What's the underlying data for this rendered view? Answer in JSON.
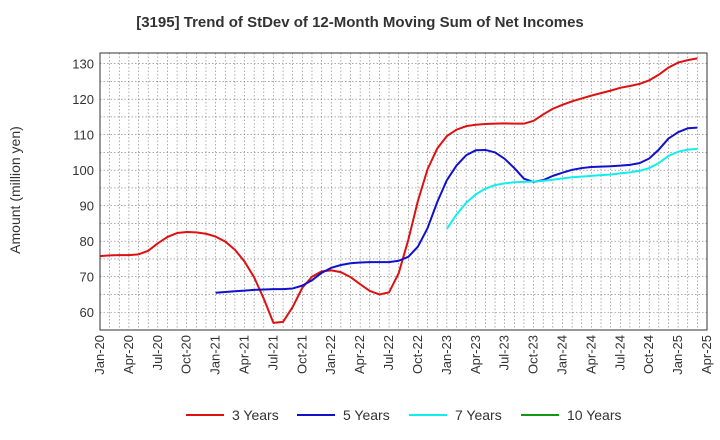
{
  "chart_data": {
    "type": "line",
    "title": "[3195]  Trend of StDev of 12-Month Moving Sum of Net Incomes",
    "ylabel": "Amount (million yen)",
    "xlabel": "",
    "x_range": [
      "2020-01",
      "2025-04"
    ],
    "ylim": [
      55,
      133
    ],
    "y_ticks": [
      60,
      70,
      80,
      90,
      100,
      110,
      120,
      130
    ],
    "x_ticks": [
      "Jan-20",
      "Apr-20",
      "Jul-20",
      "Oct-20",
      "Jan-21",
      "Apr-21",
      "Jul-21",
      "Oct-21",
      "Jan-22",
      "Apr-22",
      "Jul-22",
      "Oct-22",
      "Jan-23",
      "Apr-23",
      "Jul-23",
      "Oct-23",
      "Jan-24",
      "Apr-24",
      "Jul-24",
      "Oct-24",
      "Jan-25",
      "Apr-25"
    ],
    "grid": true,
    "legend_position": "bottom",
    "series": [
      {
        "name": "3 Years",
        "color": "#dd1111",
        "points": [
          [
            "2020-01",
            75.8
          ],
          [
            "2020-02",
            76.0
          ],
          [
            "2020-03",
            76.1
          ],
          [
            "2020-04",
            76.1
          ],
          [
            "2020-05",
            76.3
          ],
          [
            "2020-06",
            77.3
          ],
          [
            "2020-07",
            79.4
          ],
          [
            "2020-08",
            81.2
          ],
          [
            "2020-09",
            82.3
          ],
          [
            "2020-10",
            82.6
          ],
          [
            "2020-11",
            82.5
          ],
          [
            "2020-12",
            82.1
          ],
          [
            "2021-01",
            81.3
          ],
          [
            "2021-02",
            79.9
          ],
          [
            "2021-03",
            77.6
          ],
          [
            "2021-04",
            74.3
          ],
          [
            "2021-05",
            69.8
          ],
          [
            "2021-06",
            63.8
          ],
          [
            "2021-07",
            57.0
          ],
          [
            "2021-08",
            57.3
          ],
          [
            "2021-09",
            61.5
          ],
          [
            "2021-10",
            66.9
          ],
          [
            "2021-11",
            70.0
          ],
          [
            "2021-12",
            71.5
          ],
          [
            "2022-01",
            71.8
          ],
          [
            "2022-02",
            71.3
          ],
          [
            "2022-03",
            69.9
          ],
          [
            "2022-04",
            67.9
          ],
          [
            "2022-05",
            66.0
          ],
          [
            "2022-06",
            65.0
          ],
          [
            "2022-07",
            65.6
          ],
          [
            "2022-08",
            71.0
          ],
          [
            "2022-09",
            80.4
          ],
          [
            "2022-10",
            91.4
          ],
          [
            "2022-11",
            100.3
          ],
          [
            "2022-12",
            106.1
          ],
          [
            "2023-01",
            109.6
          ],
          [
            "2023-02",
            111.4
          ],
          [
            "2023-03",
            112.4
          ],
          [
            "2023-04",
            112.8
          ],
          [
            "2023-05",
            113.0
          ],
          [
            "2023-06",
            113.1
          ],
          [
            "2023-07",
            113.2
          ],
          [
            "2023-08",
            113.1
          ],
          [
            "2023-09",
            113.1
          ],
          [
            "2023-10",
            113.9
          ],
          [
            "2023-11",
            115.7
          ],
          [
            "2023-12",
            117.3
          ],
          [
            "2024-01",
            118.4
          ],
          [
            "2024-02",
            119.4
          ],
          [
            "2024-03",
            120.2
          ],
          [
            "2024-04",
            121.0
          ],
          [
            "2024-05",
            121.7
          ],
          [
            "2024-06",
            122.4
          ],
          [
            "2024-07",
            123.2
          ],
          [
            "2024-08",
            123.7
          ],
          [
            "2024-09",
            124.3
          ],
          [
            "2024-10",
            125.3
          ],
          [
            "2024-11",
            126.9
          ],
          [
            "2024-12",
            128.9
          ],
          [
            "2025-01",
            130.3
          ],
          [
            "2025-02",
            131.0
          ],
          [
            "2025-03",
            131.5
          ]
        ]
      },
      {
        "name": "5 Years",
        "color": "#1111cc",
        "points": [
          [
            "2021-01",
            65.5
          ],
          [
            "2021-02",
            65.7
          ],
          [
            "2021-03",
            65.9
          ],
          [
            "2021-04",
            66.1
          ],
          [
            "2021-05",
            66.3
          ],
          [
            "2021-06",
            66.4
          ],
          [
            "2021-07",
            66.5
          ],
          [
            "2021-08",
            66.5
          ],
          [
            "2021-09",
            66.7
          ],
          [
            "2021-10",
            67.5
          ],
          [
            "2021-11",
            69.0
          ],
          [
            "2021-12",
            71.1
          ],
          [
            "2022-01",
            72.5
          ],
          [
            "2022-02",
            73.3
          ],
          [
            "2022-03",
            73.8
          ],
          [
            "2022-04",
            74.0
          ],
          [
            "2022-05",
            74.1
          ],
          [
            "2022-06",
            74.1
          ],
          [
            "2022-07",
            74.1
          ],
          [
            "2022-08",
            74.5
          ],
          [
            "2022-09",
            75.6
          ],
          [
            "2022-10",
            78.5
          ],
          [
            "2022-11",
            83.7
          ],
          [
            "2022-12",
            91.0
          ],
          [
            "2023-01",
            97.2
          ],
          [
            "2023-02",
            101.3
          ],
          [
            "2023-03",
            104.2
          ],
          [
            "2023-04",
            105.6
          ],
          [
            "2023-05",
            105.7
          ],
          [
            "2023-06",
            105.0
          ],
          [
            "2023-07",
            103.2
          ],
          [
            "2023-08",
            100.6
          ],
          [
            "2023-09",
            97.6
          ],
          [
            "2023-10",
            96.7
          ],
          [
            "2023-11",
            97.2
          ],
          [
            "2023-12",
            98.4
          ],
          [
            "2024-01",
            99.3
          ],
          [
            "2024-02",
            100.1
          ],
          [
            "2024-03",
            100.6
          ],
          [
            "2024-04",
            100.9
          ],
          [
            "2024-05",
            101.0
          ],
          [
            "2024-06",
            101.1
          ],
          [
            "2024-07",
            101.3
          ],
          [
            "2024-08",
            101.5
          ],
          [
            "2024-09",
            102.0
          ],
          [
            "2024-10",
            103.3
          ],
          [
            "2024-11",
            105.8
          ],
          [
            "2024-12",
            108.9
          ],
          [
            "2025-01",
            110.7
          ],
          [
            "2025-02",
            111.8
          ],
          [
            "2025-03",
            112.0
          ]
        ]
      },
      {
        "name": "7 Years",
        "color": "#11eeee",
        "points": [
          [
            "2023-01",
            83.5
          ],
          [
            "2023-02",
            87.5
          ],
          [
            "2023-03",
            90.8
          ],
          [
            "2023-04",
            93.2
          ],
          [
            "2023-05",
            94.8
          ],
          [
            "2023-06",
            95.8
          ],
          [
            "2023-07",
            96.3
          ],
          [
            "2023-08",
            96.6
          ],
          [
            "2023-09",
            96.7
          ],
          [
            "2023-10",
            96.8
          ],
          [
            "2023-11",
            97.0
          ],
          [
            "2023-12",
            97.3
          ],
          [
            "2024-01",
            97.7
          ],
          [
            "2024-02",
            98.0
          ],
          [
            "2024-03",
            98.2
          ],
          [
            "2024-04",
            98.4
          ],
          [
            "2024-05",
            98.6
          ],
          [
            "2024-06",
            98.8
          ],
          [
            "2024-07",
            99.1
          ],
          [
            "2024-08",
            99.4
          ],
          [
            "2024-09",
            99.8
          ],
          [
            "2024-10",
            100.6
          ],
          [
            "2024-11",
            102.0
          ],
          [
            "2024-12",
            104.0
          ],
          [
            "2025-01",
            105.2
          ],
          [
            "2025-02",
            105.8
          ],
          [
            "2025-03",
            106.0
          ]
        ]
      },
      {
        "name": "10 Years",
        "color": "#119911",
        "points": []
      }
    ]
  }
}
